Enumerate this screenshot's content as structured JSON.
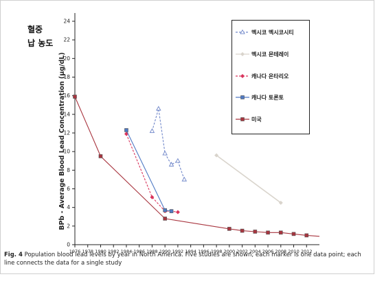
{
  "title_lines": [
    "혈중",
    "납 농도"
  ],
  "caption": {
    "fig_label": "Fig. 4",
    "text": "Population blood lead levels by year in North America. Five studies are shown; each marker is one data point; each line connects the data for a single study"
  },
  "chart_data": {
    "type": "line",
    "ylabel": "BPb - Average Blood Lead Concentration (µg/dL)",
    "ylim": [
      0,
      24
    ],
    "yticks": [
      0,
      2,
      4,
      6,
      8,
      10,
      12,
      14,
      16,
      18,
      20,
      22,
      24
    ],
    "xlim": [
      1976,
      2014
    ],
    "xticks": [
      1976,
      1978,
      1980,
      1982,
      1984,
      1986,
      1988,
      1990,
      1992,
      1994,
      1996,
      1998,
      2000,
      2002,
      2004,
      2006,
      2008,
      2010,
      2012
    ],
    "grid": false,
    "legend_position": "top-right",
    "series": [
      {
        "name": "멕시코 멕시코시티",
        "color": "#6f86c9",
        "style": "dashed",
        "marker": "triangle-open",
        "points": [
          [
            1988,
            12.2
          ],
          [
            1989,
            14.6
          ],
          [
            1990,
            9.8
          ],
          [
            1991,
            8.6
          ],
          [
            1992,
            9.0
          ],
          [
            1993,
            7.0
          ]
        ]
      },
      {
        "name": "멕시코 몬테레이",
        "color": "#d9d4cc",
        "style": "solid",
        "marker": "diamond",
        "points": [
          [
            1998,
            9.6
          ],
          [
            2008,
            4.5
          ]
        ]
      },
      {
        "name": "캐나다 온타리오",
        "color": "#d9345c",
        "style": "dashed",
        "marker": "diamond",
        "points": [
          [
            1984,
            11.9
          ],
          [
            1988,
            5.1
          ],
          [
            1990,
            3.6
          ],
          [
            1991,
            3.6
          ],
          [
            1992,
            3.5
          ]
        ]
      },
      {
        "name": "캐나다 토론토",
        "color": "#4f79c4",
        "style": "solid",
        "marker": "square",
        "points": [
          [
            1984,
            12.3
          ],
          [
            1990,
            3.7
          ],
          [
            1991,
            3.6
          ]
        ]
      },
      {
        "name": "미국",
        "color": "#a8343e",
        "style": "solid",
        "marker": "square",
        "points": [
          [
            1976,
            15.9
          ],
          [
            1980,
            9.5
          ],
          [
            1990,
            2.8
          ],
          [
            2000,
            1.7
          ],
          [
            2002,
            1.5
          ],
          [
            2004,
            1.4
          ],
          [
            2006,
            1.3
          ],
          [
            2008,
            1.3
          ],
          [
            2010,
            1.15
          ],
          [
            2012,
            1.0
          ],
          [
            2014,
            0.9
          ]
        ]
      }
    ]
  }
}
